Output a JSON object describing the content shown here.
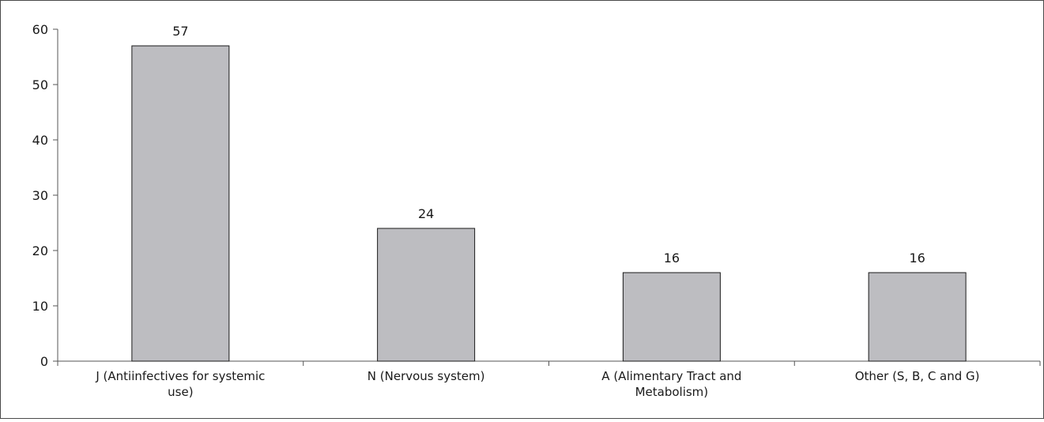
{
  "chart_data": {
    "type": "bar",
    "categories": [
      [
        "J (Antiinfectives for systemic",
        "use)"
      ],
      [
        "N (Nervous system)"
      ],
      [
        "A (Alimentary Tract and",
        "Metabolism)"
      ],
      [
        "Other (S, B, C and G)"
      ]
    ],
    "values": [
      57,
      24,
      16,
      16
    ],
    "data_labels": [
      "57",
      "24",
      "16",
      "16"
    ],
    "yticks": [
      0,
      10,
      20,
      30,
      40,
      50,
      60
    ],
    "ylim": [
      0,
      60
    ],
    "title": "",
    "xlabel": "",
    "ylabel": "",
    "grid": false,
    "bar_fill": "#bdbdc1",
    "bar_stroke": "#1a1a1a",
    "axis_color": "#555555"
  }
}
